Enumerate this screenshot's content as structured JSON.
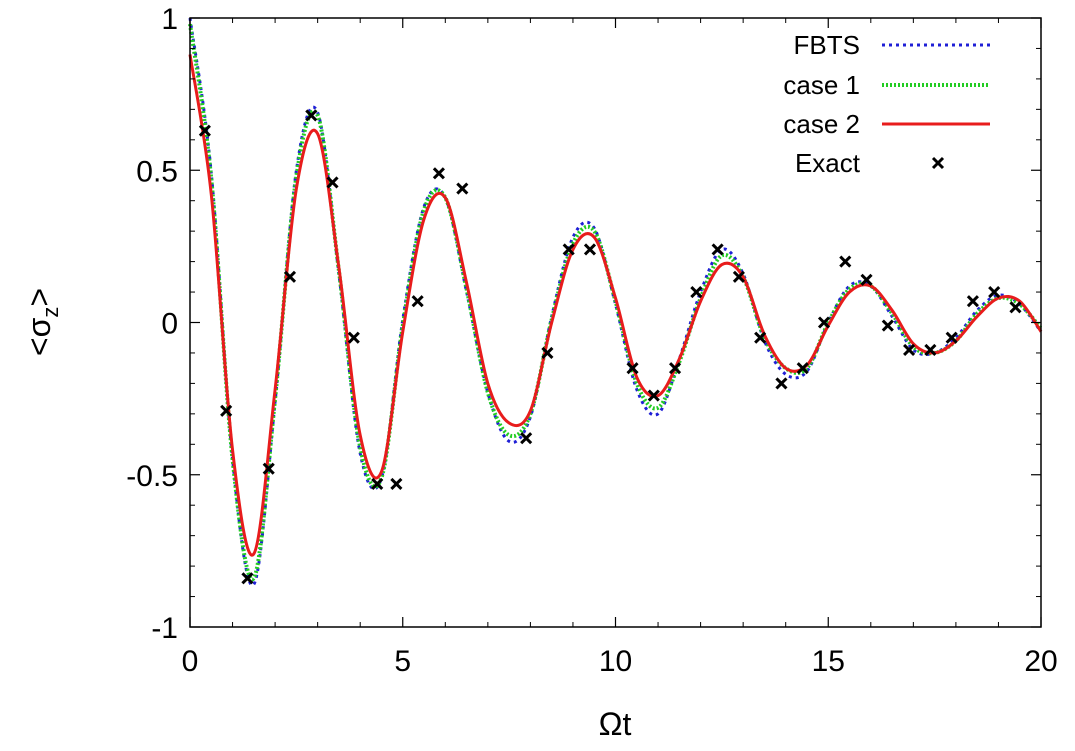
{
  "chart_data": {
    "type": "line",
    "title": "",
    "xlabel": "Ωt",
    "ylabel_main": "<σ",
    "ylabel_sub": "z",
    "ylabel_close": ">",
    "xlim": [
      0,
      20
    ],
    "ylim": [
      -1,
      1
    ],
    "xticks": [
      0,
      5,
      10,
      15,
      20
    ],
    "xtick_labels": [
      "0",
      "5",
      "10",
      "15",
      "20"
    ],
    "yticks": [
      -1,
      -0.5,
      0,
      0.5,
      1
    ],
    "ytick_labels": [
      "-1",
      "-0.5",
      "0",
      "0.5",
      "1"
    ],
    "grid": false,
    "legend_position": "top-right",
    "series": [
      {
        "name": "FBTS",
        "style": "dotted",
        "color": "#1f1fd6",
        "x": [
          0,
          0.5,
          1.0,
          1.5,
          2.0,
          2.5,
          3.0,
          3.5,
          4.0,
          4.5,
          5.0,
          5.5,
          6.0,
          6.5,
          7.0,
          7.5,
          8.0,
          8.5,
          9.0,
          9.5,
          10.0,
          10.5,
          11.0,
          11.5,
          12.0,
          12.5,
          13.0,
          13.5,
          14.0,
          14.5,
          15.0,
          15.5,
          16.0,
          16.5,
          17.0,
          17.5,
          18.0,
          18.5,
          19.0,
          19.5,
          20.0
        ],
        "y": [
          1.0,
          0.49,
          -0.45,
          -0.86,
          -0.26,
          0.5,
          0.69,
          0.16,
          -0.43,
          -0.51,
          0.01,
          0.38,
          0.41,
          0.1,
          -0.23,
          -0.39,
          -0.31,
          0.02,
          0.28,
          0.31,
          0.06,
          -0.22,
          -0.3,
          -0.12,
          0.1,
          0.24,
          0.16,
          -0.06,
          -0.17,
          -0.16,
          0.0,
          0.12,
          0.12,
          0.02,
          -0.09,
          -0.1,
          -0.05,
          0.04,
          0.09,
          0.06,
          -0.03
        ]
      },
      {
        "name": "case 1",
        "style": "dotted",
        "color": "#22cc22",
        "x": [
          0,
          0.5,
          1.0,
          1.5,
          2.0,
          2.5,
          3.0,
          3.5,
          4.0,
          4.5,
          5.0,
          5.5,
          6.0,
          6.5,
          7.0,
          7.5,
          8.0,
          8.5,
          9.0,
          9.5,
          10.0,
          10.5,
          11.0,
          11.5,
          12.0,
          12.5,
          13.0,
          13.5,
          14.0,
          14.5,
          15.0,
          15.5,
          16.0,
          16.5,
          17.0,
          17.5,
          18.0,
          18.5,
          19.0,
          19.5,
          20.0
        ],
        "y": [
          0.98,
          0.47,
          -0.45,
          -0.84,
          -0.25,
          0.48,
          0.68,
          0.17,
          -0.41,
          -0.51,
          -0.01,
          0.37,
          0.41,
          0.11,
          -0.23,
          -0.37,
          -0.3,
          0.01,
          0.26,
          0.3,
          0.07,
          -0.2,
          -0.28,
          -0.13,
          0.08,
          0.22,
          0.15,
          -0.05,
          -0.15,
          -0.15,
          0.0,
          0.11,
          0.12,
          0.03,
          -0.08,
          -0.1,
          -0.06,
          0.03,
          0.08,
          0.06,
          -0.02
        ]
      },
      {
        "name": "case 2",
        "style": "solid",
        "color": "#e81c1c",
        "x": [
          0,
          0.5,
          1.0,
          1.5,
          2.0,
          2.5,
          3.0,
          3.5,
          4.0,
          4.5,
          5.0,
          5.5,
          6.0,
          6.5,
          7.0,
          7.5,
          8.0,
          8.5,
          9.0,
          9.5,
          10.0,
          10.5,
          11.0,
          11.5,
          12.0,
          12.5,
          13.0,
          13.5,
          14.0,
          14.5,
          15.0,
          15.5,
          16.0,
          16.5,
          17.0,
          17.5,
          18.0,
          18.5,
          19.0,
          19.5,
          20.0
        ],
        "y": [
          0.88,
          0.42,
          -0.42,
          -0.76,
          -0.22,
          0.44,
          0.62,
          0.18,
          -0.37,
          -0.49,
          -0.03,
          0.34,
          0.41,
          0.13,
          -0.2,
          -0.33,
          -0.29,
          0.0,
          0.24,
          0.28,
          0.08,
          -0.18,
          -0.24,
          -0.12,
          0.07,
          0.19,
          0.15,
          -0.04,
          -0.15,
          -0.14,
          -0.01,
          0.1,
          0.12,
          0.04,
          -0.07,
          -0.1,
          -0.06,
          0.02,
          0.08,
          0.07,
          -0.03
        ]
      },
      {
        "name": "Exact",
        "style": "markers",
        "color": "#000000",
        "x": [
          0.35,
          0.85,
          1.35,
          1.85,
          2.35,
          2.85,
          3.35,
          3.85,
          4.4,
          4.85,
          5.35,
          5.85,
          6.4,
          7.9,
          8.4,
          8.9,
          9.4,
          10.4,
          10.9,
          11.4,
          11.9,
          12.4,
          12.9,
          13.4,
          13.9,
          14.4,
          14.9,
          15.4,
          15.9,
          16.4,
          16.9,
          17.4,
          17.9,
          18.4,
          18.9,
          19.4
        ],
        "y": [
          0.63,
          -0.29,
          -0.84,
          -0.48,
          0.15,
          0.68,
          0.46,
          -0.05,
          -0.53,
          -0.53,
          0.07,
          0.49,
          0.44,
          -0.38,
          -0.1,
          0.24,
          0.24,
          -0.15,
          -0.24,
          -0.15,
          0.1,
          0.24,
          0.15,
          -0.05,
          -0.2,
          -0.15,
          0.0,
          0.2,
          0.14,
          -0.01,
          -0.09,
          -0.09,
          -0.05,
          0.07,
          0.1,
          0.05
        ]
      }
    ]
  }
}
